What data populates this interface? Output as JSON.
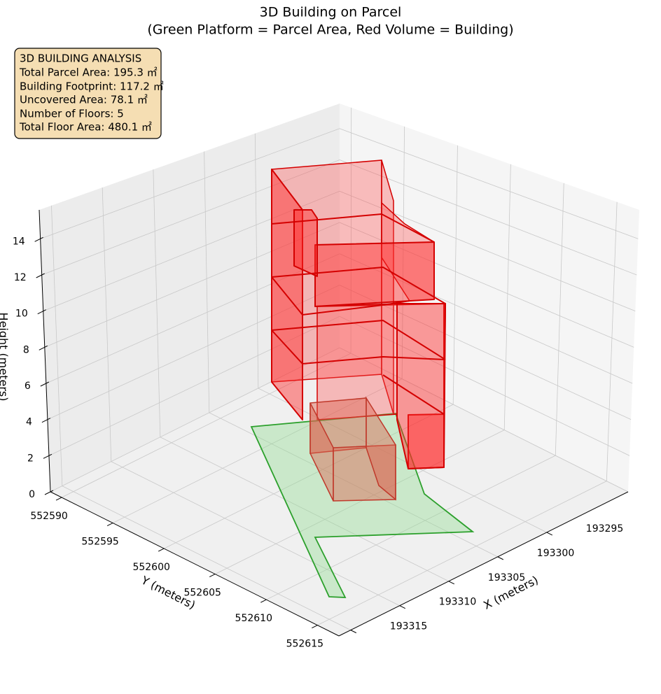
{
  "chart_data": {
    "type": "3d-polygon",
    "title": "3D Building on Parcel",
    "subtitle": "(Green Platform = Parcel Area, Red Volume = Building)",
    "annotation": [
      "3D BUILDING ANALYSIS",
      "Total Parcel Area: 195.3 ㎡",
      "Building Footprint: 117.2 ㎡",
      "Uncovered Area: 78.1 ㎡",
      "Number of Floors: 5",
      "Total Floor Area: 480.1 ㎡"
    ],
    "xlabel": "X (meters)",
    "ylabel": "Y (meters)",
    "zlabel": "Height (meters)",
    "xlim": [
      193286.7,
      193316.2
    ],
    "xticks": [
      193295,
      193300,
      193305,
      193310,
      193315
    ],
    "ylim": [
      552588.9,
      552617.1
    ],
    "yticks": [
      552590,
      552595,
      552600,
      552605,
      552610,
      552615
    ],
    "zlim": [
      0,
      15.6
    ],
    "zticks": [
      0,
      2,
      4,
      6,
      8,
      10,
      12,
      14
    ],
    "grid": true
  }
}
